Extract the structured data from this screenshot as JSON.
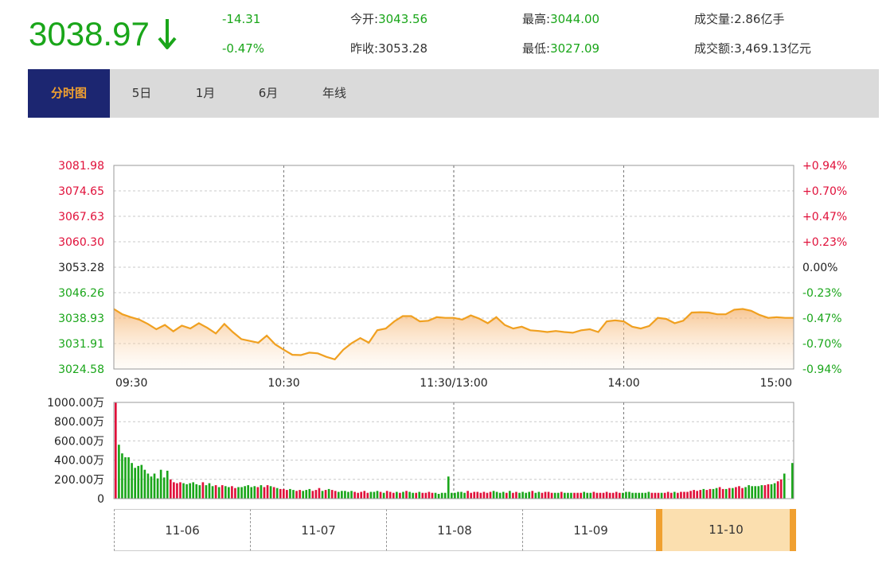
{
  "quote": {
    "price": "3038.97",
    "change": "-14.31",
    "change_pct": "-0.47%",
    "open_label": "今开:",
    "open_value": "3043.56",
    "prev_close_label": "昨收:",
    "prev_close_value": "3053.28",
    "high_label": "最高:",
    "high_value": "3044.00",
    "low_label": "最低:",
    "low_value": "3027.09",
    "volume_label": "成交量:",
    "volume_value": "2.86亿手",
    "amount_label": "成交额:",
    "amount_value": "3,469.13亿元"
  },
  "tabs": [
    "分时图",
    "5日",
    "1月",
    "6月",
    "年线"
  ],
  "active_tab": 0,
  "colors": {
    "up": "#e0103a",
    "down": "#1aa61a",
    "line": "#f0a020",
    "active_tab_bg": "#1c2671"
  },
  "chart_data": [
    {
      "type": "area",
      "name": "price",
      "y_ticks_left": [
        "3081.98",
        "3074.65",
        "3067.63",
        "3060.30",
        "3053.28",
        "3046.26",
        "3038.93",
        "3031.91",
        "3024.58"
      ],
      "y_ticks_right": [
        "+0.94%",
        "+0.70%",
        "+0.47%",
        "+0.23%",
        "0.00%",
        "-0.23%",
        "-0.47%",
        "-0.70%",
        "-0.94%"
      ],
      "x_ticks": [
        "09:30",
        "10:30",
        "11:30/13:00",
        "14:00",
        "15:00"
      ],
      "ylim": [
        3024.58,
        3081.98
      ],
      "baseline": 3053.28,
      "grid": true,
      "minutes": [
        0,
        3,
        6,
        9,
        12,
        15,
        18,
        21,
        24,
        27,
        30,
        33,
        36,
        39,
        42,
        45,
        48,
        51,
        54,
        57,
        60,
        63,
        66,
        69,
        72,
        75,
        78,
        81,
        84,
        87,
        90,
        93,
        96,
        99,
        102,
        105,
        108,
        111,
        114,
        117,
        120,
        123,
        126,
        129,
        132,
        135,
        138,
        141,
        144,
        147,
        150,
        153,
        156,
        159,
        162,
        165,
        168,
        171,
        174,
        177,
        180,
        183,
        186,
        189,
        192,
        195,
        198,
        201,
        204,
        207,
        210,
        213,
        216,
        219,
        222,
        225,
        228,
        231,
        234,
        237,
        240
      ],
      "values": [
        3041.5,
        3040.0,
        3039.2,
        3038.5,
        3037.3,
        3035.8,
        3037.0,
        3035.2,
        3036.8,
        3036.0,
        3037.5,
        3036.2,
        3034.6,
        3037.3,
        3035.0,
        3033.0,
        3032.5,
        3032.0,
        3034.0,
        3031.5,
        3030.0,
        3028.6,
        3028.5,
        3029.2,
        3029.0,
        3028.0,
        3027.3,
        3030.0,
        3031.9,
        3033.3,
        3032.0,
        3035.5,
        3036.0,
        3038.0,
        3039.5,
        3039.5,
        3038.0,
        3038.2,
        3039.2,
        3039.0,
        3039.0,
        3038.5,
        3039.7,
        3038.8,
        3037.5,
        3039.2,
        3037.0,
        3036.0,
        3036.5,
        3035.5,
        3035.3,
        3035.0,
        3035.3,
        3035.0,
        3034.8,
        3035.5,
        3035.8,
        3035.0,
        3038.0,
        3038.3,
        3038.0,
        3036.5,
        3036.0,
        3036.7,
        3039.0,
        3038.7,
        3037.5,
        3038.2,
        3040.5,
        3040.6,
        3040.5,
        3040.0,
        3040.0,
        3041.3,
        3041.5,
        3041.0,
        3039.8,
        3039.0,
        3039.2,
        3039.0,
        3039.0
      ]
    },
    {
      "type": "bar",
      "name": "volume",
      "y_ticks": [
        "1000.00万",
        "800.00万",
        "600.00万",
        "400.00万",
        "200.00万",
        "0"
      ],
      "ylim": [
        0,
        1000
      ],
      "unit": "万",
      "grid": true,
      "values": [
        1000,
        560,
        470,
        430,
        430,
        370,
        320,
        340,
        350,
        300,
        260,
        230,
        260,
        210,
        300,
        220,
        290,
        200,
        170,
        160,
        170,
        160,
        150,
        160,
        170,
        150,
        140,
        170,
        140,
        160,
        130,
        140,
        120,
        140,
        130,
        120,
        130,
        110,
        120,
        120,
        130,
        140,
        120,
        130,
        120,
        140,
        120,
        140,
        130,
        120,
        110,
        100,
        100,
        90,
        100,
        90,
        80,
        90,
        80,
        90,
        100,
        80,
        90,
        110,
        80,
        90,
        100,
        90,
        80,
        70,
        80,
        80,
        70,
        80,
        70,
        60,
        70,
        80,
        60,
        70,
        70,
        80,
        70,
        60,
        80,
        70,
        60,
        70,
        60,
        70,
        80,
        70,
        60,
        60,
        70,
        60,
        60,
        70,
        60,
        60,
        50,
        60,
        60,
        230,
        60,
        60,
        70,
        70,
        60,
        80,
        60,
        70,
        70,
        60,
        70,
        60,
        70,
        80,
        70,
        60,
        70,
        60,
        80,
        60,
        70,
        60,
        70,
        60,
        70,
        80,
        60,
        70,
        60,
        70,
        70,
        60,
        60,
        60,
        70,
        60,
        60,
        60,
        60,
        60,
        60,
        70,
        60,
        60,
        70,
        60,
        60,
        60,
        70,
        60,
        60,
        70,
        60,
        60,
        70,
        70,
        60,
        60,
        60,
        60,
        60,
        70,
        60,
        60,
        60,
        60,
        60,
        70,
        60,
        70,
        60,
        70,
        70,
        70,
        80,
        90,
        80,
        90,
        100,
        90,
        100,
        100,
        110,
        120,
        100,
        100,
        110,
        110,
        120,
        130,
        110,
        120,
        140,
        130,
        130,
        130,
        140,
        140,
        150,
        150,
        160,
        180,
        200,
        260
      ],
      "colors": [
        "up",
        "down",
        "down",
        "down",
        "down",
        "down",
        "down",
        "down",
        "down",
        "down",
        "down",
        "down",
        "down",
        "down",
        "down",
        "down",
        "down",
        "up",
        "up",
        "up",
        "up",
        "down",
        "down",
        "down",
        "down",
        "down",
        "down",
        "up",
        "down",
        "down",
        "down",
        "up",
        "down",
        "up",
        "down",
        "down",
        "up",
        "up",
        "down",
        "down",
        "down",
        "down",
        "down",
        "down",
        "up",
        "down",
        "up",
        "up",
        "down",
        "up",
        "down",
        "up",
        "up",
        "up",
        "down",
        "down",
        "up",
        "up",
        "down",
        "down",
        "down",
        "up",
        "up",
        "up",
        "down",
        "up",
        "down",
        "up",
        "up",
        "down",
        "down",
        "down",
        "down",
        "down",
        "up",
        "up",
        "up",
        "up",
        "up",
        "down",
        "down",
        "down",
        "up",
        "down",
        "up",
        "up",
        "up",
        "down",
        "up",
        "down",
        "up",
        "down",
        "down",
        "up",
        "down",
        "up",
        "up",
        "up",
        "up",
        "down",
        "down",
        "down",
        "down",
        "down",
        "down",
        "down",
        "down",
        "down",
        "down",
        "up",
        "up",
        "up",
        "up",
        "up",
        "up",
        "up",
        "up",
        "down",
        "down",
        "down",
        "down",
        "up",
        "down",
        "up",
        "up",
        "down",
        "down",
        "down",
        "down",
        "up",
        "down",
        "down",
        "up",
        "up",
        "up",
        "up",
        "down",
        "down",
        "up",
        "down",
        "down",
        "down",
        "up",
        "up",
        "up",
        "down",
        "down",
        "down",
        "up",
        "up",
        "up",
        "up",
        "up",
        "up",
        "up",
        "up",
        "up",
        "down",
        "down",
        "down",
        "down",
        "down",
        "down",
        "down",
        "down",
        "down",
        "up",
        "up",
        "up",
        "down",
        "up",
        "up",
        "up",
        "down",
        "up",
        "up",
        "up",
        "up",
        "up",
        "up",
        "up",
        "up",
        "down",
        "up",
        "up",
        "down",
        "down",
        "up",
        "up",
        "down",
        "up",
        "down",
        "up",
        "up",
        "up",
        "down",
        "down",
        "down",
        "down",
        "down",
        "down",
        "up",
        "up",
        "down",
        "down",
        "up",
        "up",
        "down",
        "down",
        "down"
      ],
      "last_bar": {
        "value": 370,
        "color": "down"
      }
    }
  ],
  "dates": [
    "11-06",
    "11-07",
    "11-08",
    "11-09",
    "11-10"
  ],
  "selected_date": 4
}
